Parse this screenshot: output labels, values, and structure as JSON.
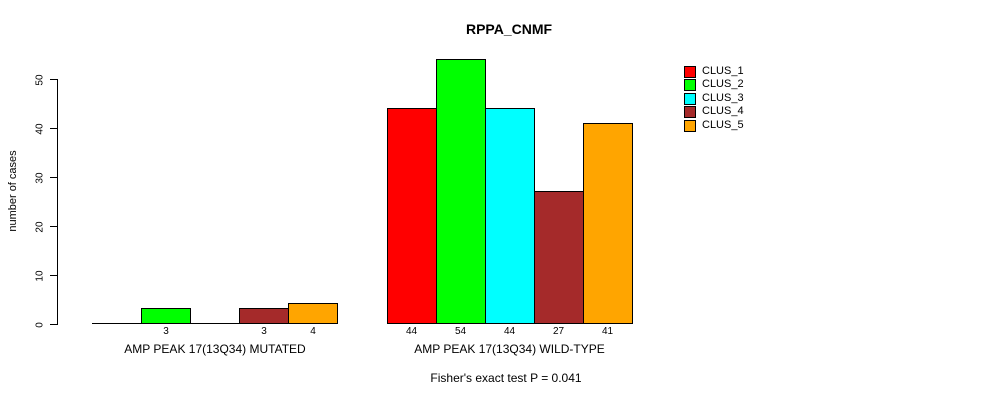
{
  "chart_data": {
    "type": "bar",
    "title": "RPPA_CNMF",
    "ylabel": "number of cases",
    "yticks": [
      0,
      10,
      20,
      30,
      40,
      50
    ],
    "ylim": [
      0,
      54
    ],
    "grid": false,
    "legend_position": "top-right",
    "series_names": [
      "CLUS_1",
      "CLUS_2",
      "CLUS_3",
      "CLUS_4",
      "CLUS_5"
    ],
    "series_colors": [
      "#FF0000",
      "#00FF00",
      "#00FFFF",
      "#A52A2A",
      "#FFA500"
    ],
    "groups": [
      {
        "label": "AMP PEAK 17(13Q34) MUTATED",
        "values": [
          0,
          3,
          0,
          3,
          4
        ]
      },
      {
        "label": "AMP PEAK 17(13Q34) WILD-TYPE",
        "values": [
          44,
          54,
          44,
          27,
          41
        ]
      }
    ],
    "bar_value_labels_shown": [
      "3",
      "3",
      "4",
      "44",
      "54",
      "44",
      "27",
      "41"
    ],
    "annotation": "Fisher's exact test P = 0.041"
  }
}
